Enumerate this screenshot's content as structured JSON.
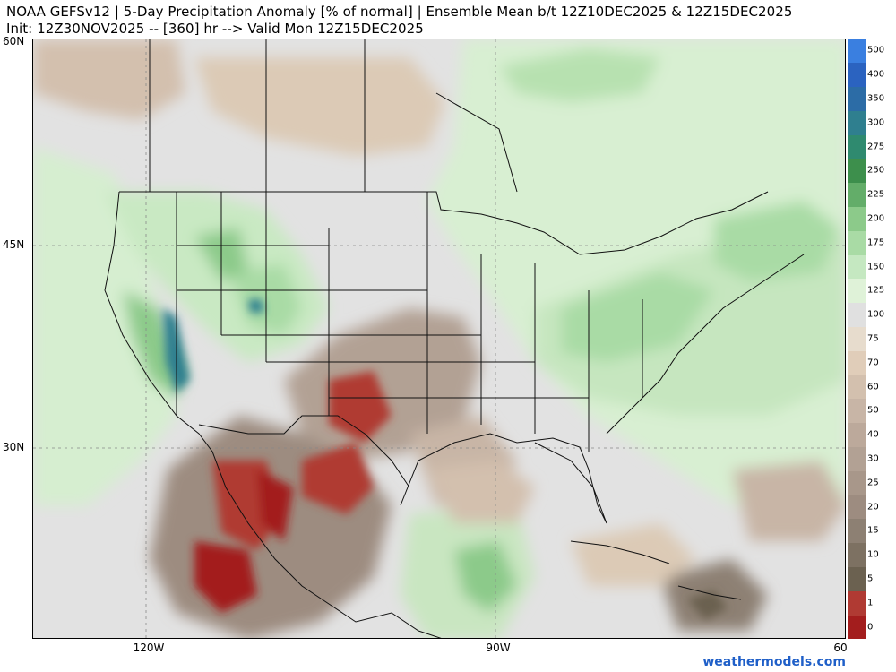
{
  "title": {
    "line1": "NOAA GEFSv12 | 5-Day Precipitation Anomaly [% of normal] | Ensemble Mean b/t 12Z10DEC2025 & 12Z15DEC2025",
    "line2": "Init: 12Z30NOV2025 -- [360] hr --> Valid Mon 12Z15DEC2025"
  },
  "axes": {
    "lat_labels": [
      "60N",
      "45N",
      "30N"
    ],
    "lon_labels": [
      "120W",
      "90W",
      "60"
    ]
  },
  "colorbar": {
    "levels": [
      {
        "label": "0",
        "color": "#a31d1d"
      },
      {
        "label": "1",
        "color": "#b03a33"
      },
      {
        "label": "5",
        "color": "#6b6150"
      },
      {
        "label": "10",
        "color": "#7d7162"
      },
      {
        "label": "15",
        "color": "#8d8073"
      },
      {
        "label": "20",
        "color": "#9d8c80"
      },
      {
        "label": "25",
        "color": "#a8978a"
      },
      {
        "label": "30",
        "color": "#b2a194"
      },
      {
        "label": "40",
        "color": "#bca99b"
      },
      {
        "label": "50",
        "color": "#c8b5a6"
      },
      {
        "label": "60",
        "color": "#d3c0ae"
      },
      {
        "label": "70",
        "color": "#e0cdb9"
      },
      {
        "label": "75",
        "color": "#e7dccd"
      },
      {
        "label": "100",
        "color": "#e0e0e0"
      },
      {
        "label": "125",
        "color": "#dff2d8"
      },
      {
        "label": "150",
        "color": "#c5e8c1"
      },
      {
        "label": "175",
        "color": "#a9dba5"
      },
      {
        "label": "200",
        "color": "#8cca8a"
      },
      {
        "label": "225",
        "color": "#63ad69"
      },
      {
        "label": "250",
        "color": "#3d8f4c"
      },
      {
        "label": "275",
        "color": "#2f8a6f"
      },
      {
        "label": "300",
        "color": "#2f7f8f"
      },
      {
        "label": "350",
        "color": "#2c6ca6"
      },
      {
        "label": "400",
        "color": "#2b63c0"
      },
      {
        "label": "500",
        "color": "#3a7fe0"
      }
    ]
  },
  "credit": "weathermodels.com"
}
